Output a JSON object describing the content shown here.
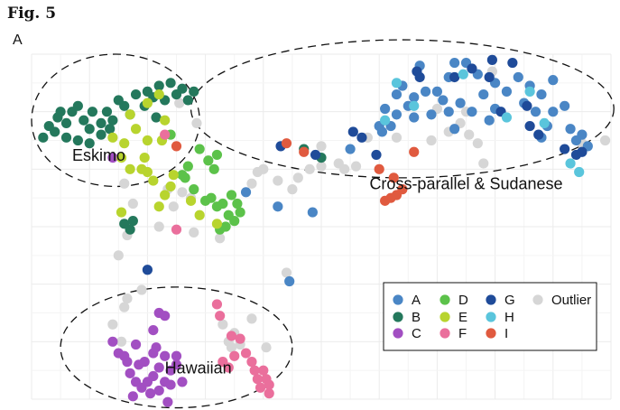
{
  "figure": {
    "label": "Fig. 5",
    "panel": "A"
  },
  "colors": {
    "A": "#4a86c5",
    "B": "#24785c",
    "C": "#a24fc2",
    "D": "#5cc24a",
    "E": "#b8d42e",
    "F": "#ea6f9c",
    "G": "#1f4b99",
    "H": "#5ac5dc",
    "I": "#e05a3f",
    "Outlier": "#d6d6d6"
  },
  "chart_data": {
    "type": "scatter",
    "xlabel": "",
    "ylabel": "",
    "grid": true,
    "xlim": [
      0,
      10
    ],
    "ylim": [
      0,
      6
    ],
    "legend": {
      "placement": "bottom-right",
      "entries": [
        "A",
        "B",
        "C",
        "D",
        "E",
        "F",
        "G",
        "H",
        "I",
        "Outlier"
      ]
    },
    "annotations": [
      {
        "text": "Eskimo",
        "x": 0.7,
        "y": 4.15
      },
      {
        "text": "Cross-parallel & Sudanese",
        "x": 7.5,
        "y": 3.65
      },
      {
        "text": "Hawaiian",
        "x": 2.3,
        "y": 0.45
      }
    ],
    "ellipses": [
      {
        "name": "eskimo-ellipse",
        "cx": 1.45,
        "cy": 4.85,
        "rx": 1.45,
        "ry": 1.15
      },
      {
        "name": "sudanese-ellipse",
        "cx": 6.4,
        "cy": 5.05,
        "rx": 3.65,
        "ry": 1.2
      },
      {
        "name": "hawaiian-ellipse",
        "cx": 2.5,
        "cy": 0.9,
        "rx": 2.0,
        "ry": 1.05
      }
    ],
    "series": [
      {
        "name": "A",
        "points": [
          [
            6.4,
            5.45
          ],
          [
            6.6,
            5.25
          ],
          [
            6.8,
            5.35
          ],
          [
            6.5,
            5.1
          ],
          [
            7.0,
            5.35
          ],
          [
            7.2,
            5.6
          ],
          [
            7.1,
            5.2
          ],
          [
            7.4,
            5.15
          ],
          [
            7.6,
            5.0
          ],
          [
            7.8,
            5.3
          ],
          [
            8.0,
            5.5
          ],
          [
            8.2,
            5.35
          ],
          [
            8.4,
            5.6
          ],
          [
            8.6,
            5.45
          ],
          [
            8.8,
            5.3
          ],
          [
            9.0,
            5.55
          ],
          [
            9.2,
            5.1
          ],
          [
            8.5,
            5.15
          ],
          [
            8.0,
            5.05
          ],
          [
            6.9,
            4.95
          ],
          [
            6.3,
            4.95
          ],
          [
            6.1,
            5.05
          ],
          [
            6.05,
            4.65
          ],
          [
            7.5,
            5.85
          ],
          [
            6.7,
            5.8
          ],
          [
            7.3,
            5.85
          ],
          [
            7.7,
            5.65
          ],
          [
            8.7,
            5.0
          ],
          [
            9.3,
            4.7
          ],
          [
            9.5,
            4.6
          ],
          [
            9.6,
            4.4
          ],
          [
            9.4,
            4.5
          ],
          [
            8.9,
            4.75
          ],
          [
            7.9,
            4.85
          ],
          [
            5.5,
            4.35
          ],
          [
            6.2,
            4.75
          ],
          [
            6.0,
            4.75
          ],
          [
            3.7,
            3.6
          ],
          [
            4.25,
            3.35
          ],
          [
            4.85,
            3.25
          ],
          [
            4.45,
            2.05
          ],
          [
            6.6,
            4.9
          ],
          [
            7.3,
            4.7
          ],
          [
            8.8,
            4.55
          ],
          [
            9.0,
            5.0
          ],
          [
            7.2,
            5.0
          ],
          [
            6.3,
            5.3
          ]
        ]
      },
      {
        "name": "B",
        "points": [
          [
            0.5,
            5.0
          ],
          [
            0.6,
            4.8
          ],
          [
            0.7,
            5.0
          ],
          [
            0.9,
            4.85
          ],
          [
            1.05,
            5.0
          ],
          [
            0.8,
            5.1
          ],
          [
            1.0,
            4.7
          ],
          [
            1.2,
            4.8
          ],
          [
            1.4,
            4.85
          ],
          [
            1.6,
            5.1
          ],
          [
            1.8,
            5.3
          ],
          [
            2.0,
            5.35
          ],
          [
            2.2,
            5.45
          ],
          [
            2.4,
            5.5
          ],
          [
            2.6,
            5.4
          ],
          [
            2.8,
            5.35
          ],
          [
            2.5,
            5.3
          ],
          [
            2.3,
            5.2
          ],
          [
            1.5,
            5.2
          ],
          [
            1.3,
            5.0
          ],
          [
            0.6,
            4.55
          ],
          [
            0.8,
            4.5
          ],
          [
            1.0,
            4.45
          ],
          [
            1.2,
            4.6
          ],
          [
            0.4,
            4.65
          ],
          [
            0.2,
            4.55
          ],
          [
            0.3,
            4.75
          ],
          [
            0.45,
            4.9
          ],
          [
            1.35,
            4.7
          ],
          [
            1.7,
            4.95
          ],
          [
            2.1,
            5.25
          ],
          [
            2.7,
            5.2
          ],
          [
            1.6,
            3.05
          ],
          [
            1.7,
            2.95
          ],
          [
            1.75,
            3.1
          ],
          [
            4.7,
            4.35
          ],
          [
            5.0,
            4.2
          ],
          [
            2.15,
            4.9
          ],
          [
            1.95,
            5.1
          ]
        ]
      },
      {
        "name": "C",
        "points": [
          [
            1.4,
            4.2
          ],
          [
            1.8,
            0.95
          ],
          [
            1.4,
            1.0
          ],
          [
            1.5,
            0.8
          ],
          [
            1.6,
            0.75
          ],
          [
            1.85,
            0.6
          ],
          [
            2.1,
            0.8
          ],
          [
            1.7,
            0.45
          ],
          [
            1.8,
            0.3
          ],
          [
            1.9,
            0.2
          ],
          [
            2.0,
            0.3
          ],
          [
            2.1,
            0.4
          ],
          [
            2.2,
            0.55
          ],
          [
            2.3,
            0.3
          ],
          [
            2.1,
            1.2
          ],
          [
            2.2,
            1.5
          ],
          [
            2.3,
            1.45
          ],
          [
            2.3,
            0.75
          ],
          [
            2.5,
            0.6
          ],
          [
            2.4,
            0.5
          ],
          [
            2.6,
            0.3
          ],
          [
            2.2,
            0.15
          ],
          [
            2.4,
            0.25
          ],
          [
            2.5,
            0.75
          ],
          [
            1.95,
            0.65
          ],
          [
            2.05,
            0.1
          ],
          [
            1.75,
            0.05
          ],
          [
            2.15,
            0.9
          ],
          [
            1.65,
            0.65
          ],
          [
            2.35,
            -0.05
          ]
        ]
      },
      {
        "name": "D",
        "points": [
          [
            2.9,
            4.35
          ],
          [
            3.05,
            4.15
          ],
          [
            3.2,
            4.25
          ],
          [
            3.15,
            4.0
          ],
          [
            2.7,
            4.05
          ],
          [
            2.65,
            3.85
          ],
          [
            2.8,
            3.65
          ],
          [
            3.0,
            3.45
          ],
          [
            3.2,
            3.35
          ],
          [
            3.4,
            3.2
          ],
          [
            3.5,
            3.1
          ],
          [
            3.6,
            3.25
          ],
          [
            3.35,
            3.0
          ],
          [
            3.25,
            2.95
          ],
          [
            3.45,
            3.55
          ],
          [
            3.3,
            3.4
          ],
          [
            2.4,
            4.6
          ],
          [
            2.6,
            3.9
          ],
          [
            3.1,
            3.5
          ],
          [
            3.55,
            3.4
          ]
        ]
      },
      {
        "name": "E",
        "points": [
          [
            2.2,
            5.3
          ],
          [
            2.0,
            5.15
          ],
          [
            1.7,
            4.95
          ],
          [
            1.8,
            4.7
          ],
          [
            2.3,
            4.85
          ],
          [
            1.4,
            4.55
          ],
          [
            1.6,
            4.45
          ],
          [
            1.55,
            4.2
          ],
          [
            1.7,
            4.0
          ],
          [
            1.9,
            4.0
          ],
          [
            2.0,
            3.95
          ],
          [
            2.1,
            3.8
          ],
          [
            1.95,
            4.2
          ],
          [
            2.45,
            3.9
          ],
          [
            2.3,
            3.55
          ],
          [
            2.2,
            3.35
          ],
          [
            2.9,
            3.2
          ],
          [
            2.4,
            3.7
          ],
          [
            2.75,
            3.45
          ],
          [
            2.0,
            4.5
          ],
          [
            2.25,
            4.5
          ],
          [
            1.55,
            3.25
          ],
          [
            3.2,
            3.05
          ]
        ]
      },
      {
        "name": "F",
        "points": [
          [
            3.2,
            1.65
          ],
          [
            3.25,
            1.45
          ],
          [
            3.45,
            1.1
          ],
          [
            3.6,
            1.05
          ],
          [
            3.7,
            0.8
          ],
          [
            3.5,
            0.75
          ],
          [
            3.8,
            0.65
          ],
          [
            4.0,
            0.5
          ],
          [
            4.05,
            0.35
          ],
          [
            3.9,
            0.35
          ],
          [
            4.1,
            0.25
          ],
          [
            3.95,
            0.2
          ],
          [
            4.1,
            0.1
          ],
          [
            3.85,
            0.5
          ],
          [
            3.4,
            0.55
          ],
          [
            2.5,
            2.95
          ],
          [
            2.3,
            4.6
          ],
          [
            3.3,
            0.65
          ]
        ]
      },
      {
        "name": "G",
        "points": [
          [
            6.65,
            5.7
          ],
          [
            7.3,
            5.6
          ],
          [
            7.6,
            5.75
          ],
          [
            7.9,
            5.6
          ],
          [
            8.3,
            5.85
          ],
          [
            8.55,
            5.1
          ],
          [
            8.1,
            5.0
          ],
          [
            8.6,
            4.75
          ],
          [
            8.75,
            4.6
          ],
          [
            9.2,
            4.35
          ],
          [
            9.4,
            4.25
          ],
          [
            9.5,
            4.3
          ],
          [
            6.7,
            5.6
          ],
          [
            5.55,
            4.65
          ],
          [
            7.95,
            5.9
          ],
          [
            5.95,
            4.25
          ],
          [
            5.7,
            4.55
          ],
          [
            4.9,
            4.25
          ],
          [
            4.3,
            4.4
          ],
          [
            2.0,
            2.25
          ]
        ]
      },
      {
        "name": "H",
        "points": [
          [
            6.3,
            5.5
          ],
          [
            6.6,
            5.1
          ],
          [
            6.1,
            4.85
          ],
          [
            8.2,
            4.9
          ],
          [
            8.85,
            4.8
          ],
          [
            9.3,
            4.1
          ],
          [
            9.45,
            3.95
          ],
          [
            7.45,
            5.65
          ],
          [
            8.6,
            5.35
          ]
        ]
      },
      {
        "name": "I",
        "points": [
          [
            2.5,
            4.4
          ],
          [
            4.4,
            4.45
          ],
          [
            6.0,
            4.0
          ],
          [
            6.25,
            3.85
          ],
          [
            6.4,
            3.65
          ],
          [
            6.3,
            3.55
          ],
          [
            6.2,
            3.5
          ],
          [
            6.1,
            3.45
          ],
          [
            6.6,
            4.3
          ],
          [
            4.7,
            4.3
          ]
        ]
      },
      {
        "name": "Outlier",
        "points": [
          [
            7.0,
            5.05
          ],
          [
            7.2,
            4.65
          ],
          [
            7.5,
            5.0
          ],
          [
            7.4,
            4.8
          ],
          [
            7.7,
            4.45
          ],
          [
            7.8,
            4.1
          ],
          [
            7.55,
            4.6
          ],
          [
            7.95,
            5.7
          ],
          [
            9.9,
            4.5
          ],
          [
            9.5,
            4.45
          ],
          [
            6.9,
            4.5
          ],
          [
            6.3,
            4.55
          ],
          [
            5.8,
            4.55
          ],
          [
            5.6,
            4.05
          ],
          [
            5.4,
            4.0
          ],
          [
            5.3,
            4.1
          ],
          [
            5.0,
            4.05
          ],
          [
            4.8,
            4.0
          ],
          [
            5.0,
            4.4
          ],
          [
            4.6,
            3.85
          ],
          [
            4.5,
            3.65
          ],
          [
            4.25,
            3.8
          ],
          [
            3.9,
            3.95
          ],
          [
            3.8,
            3.75
          ],
          [
            4.0,
            4.0
          ],
          [
            2.45,
            3.35
          ],
          [
            2.35,
            3.65
          ],
          [
            2.6,
            3.6
          ],
          [
            2.75,
            3.5
          ],
          [
            2.8,
            2.9
          ],
          [
            1.6,
            3.75
          ],
          [
            1.75,
            3.4
          ],
          [
            1.65,
            2.85
          ],
          [
            1.5,
            2.5
          ],
          [
            1.9,
            1.9
          ],
          [
            1.65,
            1.75
          ],
          [
            1.4,
            1.3
          ],
          [
            2.2,
            3.0
          ],
          [
            3.25,
            2.8
          ],
          [
            4.4,
            2.2
          ],
          [
            3.8,
            1.4
          ],
          [
            3.6,
            0.95
          ],
          [
            3.4,
            1.0
          ],
          [
            3.5,
            1.15
          ],
          [
            3.3,
            1.3
          ],
          [
            3.45,
            0.9
          ],
          [
            4.05,
            0.9
          ],
          [
            1.6,
            1.6
          ],
          [
            1.55,
            1.0
          ],
          [
            2.55,
            5.15
          ],
          [
            2.85,
            4.8
          ]
        ]
      }
    ]
  }
}
